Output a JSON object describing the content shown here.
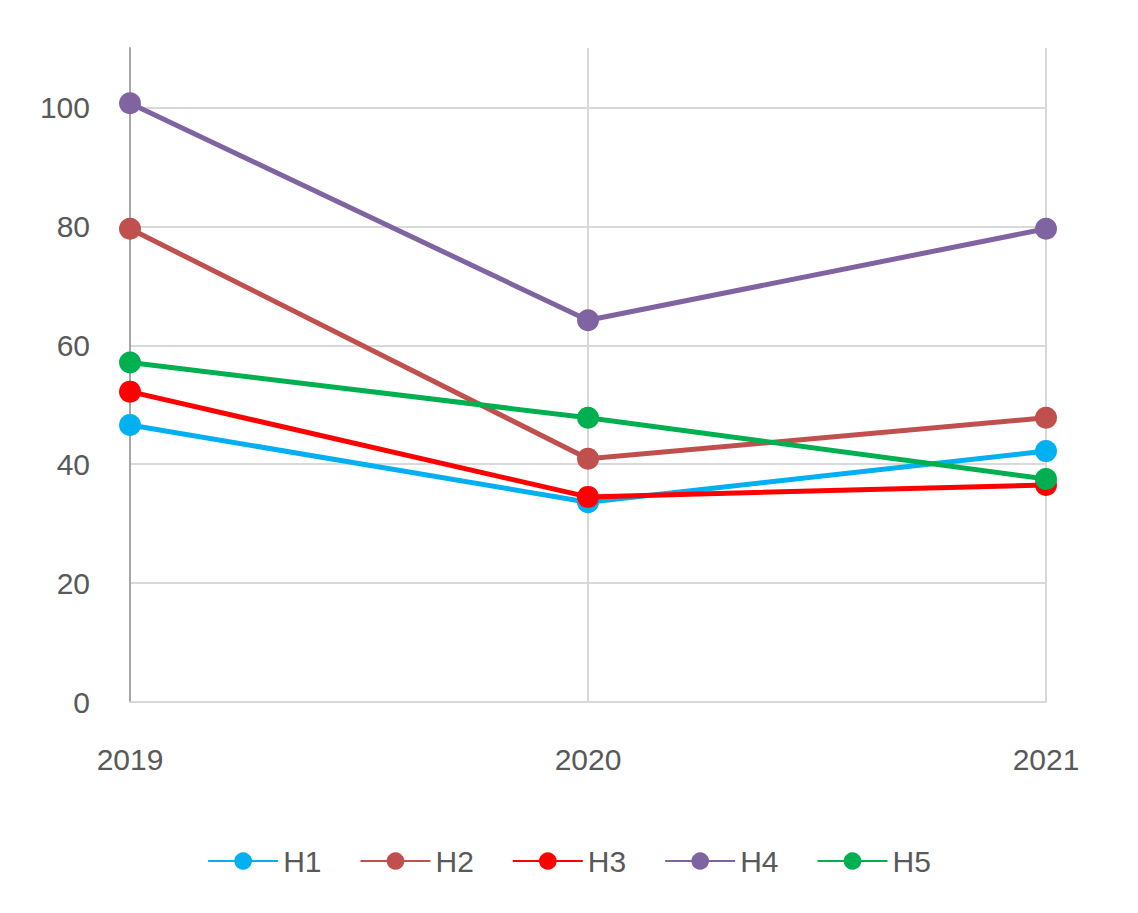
{
  "chart_data": {
    "type": "line",
    "categories": [
      "2019",
      "2020",
      "2021"
    ],
    "series": [
      {
        "name": "H1",
        "color": "#00b0f0",
        "values": [
          46.6,
          33.6,
          42.2
        ]
      },
      {
        "name": "H2",
        "color": "#c0504d",
        "values": [
          79.6,
          40.9,
          47.8
        ]
      },
      {
        "name": "H3",
        "color": "#ff0000",
        "values": [
          52.2,
          34.5,
          36.5
        ]
      },
      {
        "name": "H4",
        "color": "#8064a2",
        "values": [
          100.7,
          64.2,
          79.6
        ]
      },
      {
        "name": "H5",
        "color": "#00b050",
        "values": [
          57.1,
          47.8,
          37.5
        ]
      }
    ],
    "ylim": [
      0,
      110
    ],
    "yticks": [
      0,
      20,
      40,
      60,
      80,
      100
    ],
    "grid": true,
    "legend": "bottom",
    "marker": "circle"
  }
}
